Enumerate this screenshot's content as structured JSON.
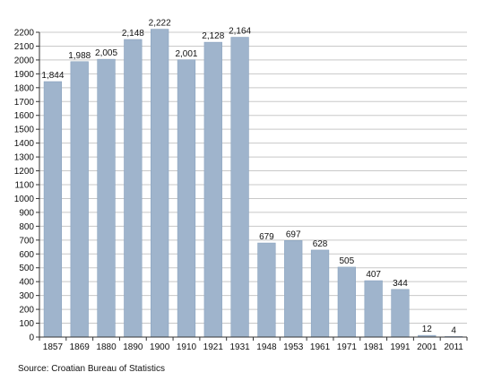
{
  "chart_data": {
    "type": "bar",
    "categories": [
      "1857",
      "1869",
      "1880",
      "1890",
      "1900",
      "1910",
      "1921",
      "1931",
      "1948",
      "1953",
      "1961",
      "1971",
      "1981",
      "1991",
      "2001",
      "2011"
    ],
    "values": [
      1844,
      1988,
      2005,
      2148,
      2222,
      2001,
      2128,
      2164,
      679,
      697,
      628,
      505,
      407,
      344,
      12,
      4
    ],
    "data_labels": [
      "1,844",
      "1,988",
      "2,005",
      "2,148",
      "2,222",
      "2,001",
      "2,128",
      "2,164",
      "679",
      "697",
      "628",
      "505",
      "407",
      "344",
      "12",
      "4"
    ],
    "ylim": [
      0,
      2200
    ],
    "ytick_step": 100,
    "grid": true,
    "bar_color": "#9fb4cc",
    "bar_edge_color": "#8aa3bf",
    "grid_color": "#c8c8c8"
  },
  "source": "Source: Croatian Bureau of Statistics"
}
